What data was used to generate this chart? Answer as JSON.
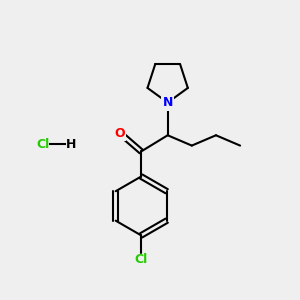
{
  "background_color": "#efefef",
  "bond_color": "#000000",
  "N_color": "#0000ff",
  "O_color": "#ff0000",
  "Cl_color": "#22cc00",
  "H_color": "#000000",
  "bond_width": 1.5,
  "figsize": [
    3.0,
    3.0
  ],
  "dpi": 100,
  "xlim": [
    0,
    10
  ],
  "ylim": [
    0,
    10
  ]
}
